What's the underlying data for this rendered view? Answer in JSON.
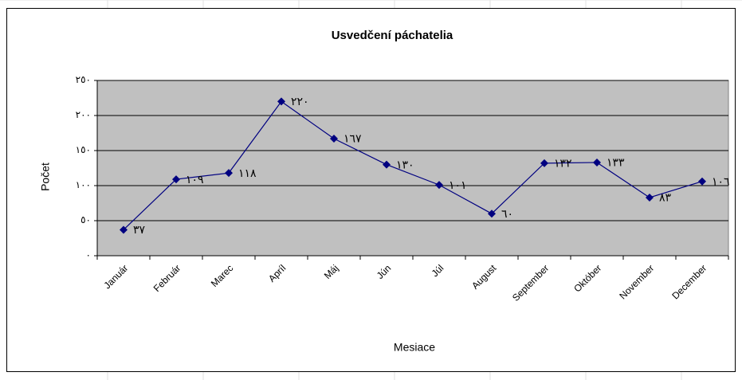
{
  "chart_data": {
    "type": "line",
    "title": "Usvedčení páchatelia",
    "x_label": "Mesiace",
    "y_label": "Počet",
    "categories": [
      "Január",
      "Február",
      "Marec",
      "Apríl",
      "Máj",
      "Jún",
      "Júl",
      "August",
      "September",
      "Október",
      "November",
      "December"
    ],
    "series": [
      {
        "name": "Usvedčení páchatelia",
        "color": "#000080",
        "values": [
          37,
          109,
          118,
          220,
          167,
          130,
          101,
          60,
          132,
          133,
          83,
          106
        ],
        "value_labels": [
          "٣٧",
          "١٠٩",
          "١١٨",
          "٢٢٠",
          "١٦٧",
          "١٣٠",
          "١٠١",
          "٦٠",
          "١٣٢",
          "١٣٣",
          "٨٣",
          "١٠٦"
        ]
      }
    ],
    "ylim": [
      0,
      250
    ],
    "yticks": [
      {
        "value": 0,
        "label": "٠"
      },
      {
        "value": 50,
        "label": "٥٠"
      },
      {
        "value": 100,
        "label": "١٠٠"
      },
      {
        "value": 150,
        "label": "١٥٠"
      },
      {
        "value": 200,
        "label": "٢٠٠"
      },
      {
        "value": 250,
        "label": "٢٥٠"
      }
    ],
    "grid": true,
    "plot_background": "#c0c0c0"
  }
}
